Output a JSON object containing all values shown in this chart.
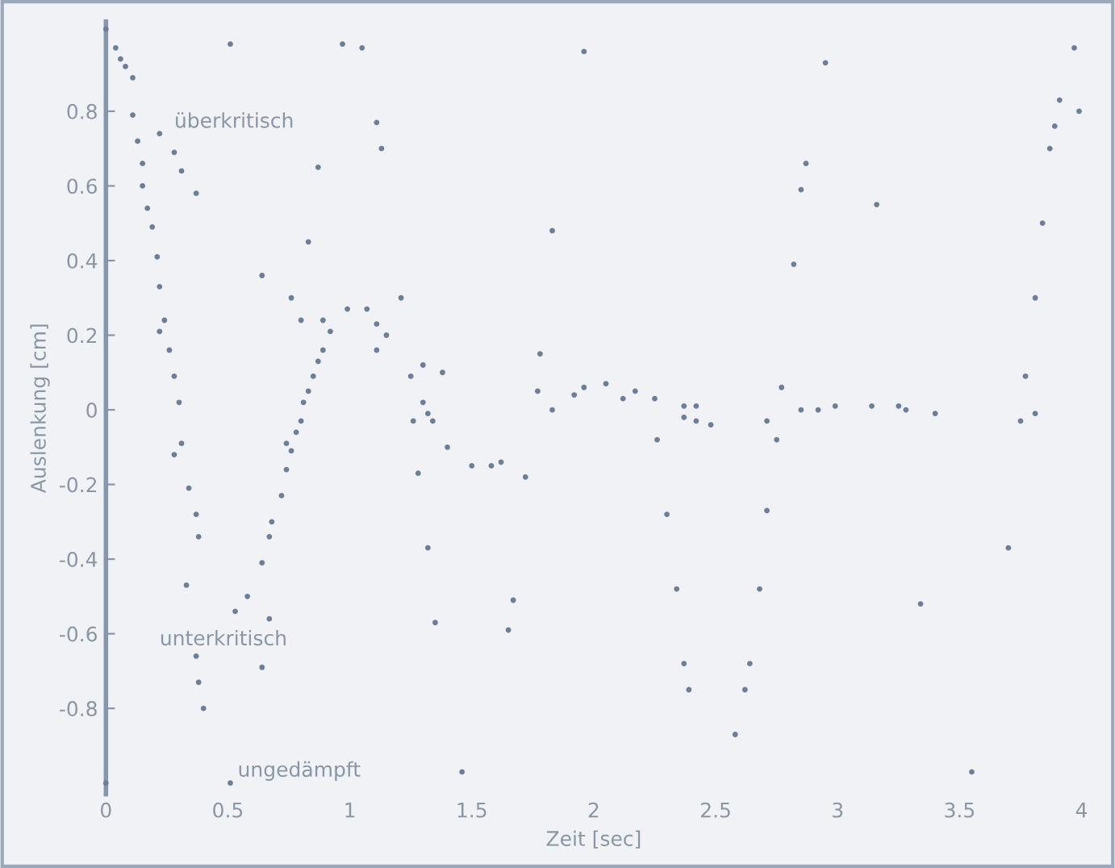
{
  "chart_data": {
    "type": "scatter",
    "xlabel": "Zeit [sec]",
    "ylabel": "Auslenkung [cm]",
    "x": [
      0,
      0.51,
      0.97,
      1.05,
      0.04,
      0.06,
      0.08,
      0.11,
      0.11,
      0.22,
      0.13,
      0.28,
      0.15,
      0.31,
      1.11,
      1.13,
      0.87,
      0.15,
      0.37,
      0.17,
      0.19,
      1.83,
      0.83,
      0.21,
      0.64,
      0.22,
      0.76,
      1.21,
      0.99,
      1.07,
      0.8,
      0.89,
      0.24,
      1.11,
      0.92,
      0.22,
      1.15,
      0.26,
      0.89,
      1.11,
      1.78,
      0.87,
      1.3,
      1.38,
      1.25,
      0.28,
      0.85,
      1.77,
      0.83,
      0.81,
      1.3,
      0.3,
      1.83,
      1.32,
      1.26,
      1.34,
      0.8,
      0.78,
      1.96,
      2.95,
      3.97,
      3.91,
      3.89,
      3.99,
      3.87,
      2.87,
      2.85,
      3.16,
      3.84,
      2.82,
      3.81,
      3.77,
      2.77,
      2.05,
      1.96,
      1.92,
      2.17,
      2.12,
      2.25,
      2.37,
      2.42,
      2.85,
      2.92,
      2.99,
      3.14,
      3.25,
      3.28,
      3.4,
      3.81,
      2.37,
      2.42,
      2.48,
      2.71,
      3.75,
      0.31,
      0.28,
      0.74,
      0.76,
      0.74,
      1.4,
      1.5,
      1.58,
      1.62,
      1.72,
      1.28,
      0.34,
      0.72,
      0.37,
      0.68,
      0.38,
      0.67,
      0.64,
      1.32,
      0.33,
      0.58,
      0.53,
      0.67,
      1.35,
      1.67,
      1.65,
      0.37,
      0.64,
      0.38,
      0.4,
      1.46,
      0,
      0.51,
      2.26,
      2.75,
      2.3,
      2.71,
      2.34,
      2.68,
      2.37,
      2.64,
      2.39,
      2.62,
      2.58,
      3.34,
      3.7,
      3.55
    ],
    "values": [
      1.02,
      0.98,
      0.98,
      0.97,
      0.97,
      0.94,
      0.92,
      0.89,
      0.79,
      0.74,
      0.72,
      0.69,
      0.66,
      0.64,
      0.77,
      0.7,
      0.65,
      0.6,
      0.58,
      0.54,
      0.49,
      0.48,
      0.45,
      0.41,
      0.36,
      0.33,
      0.3,
      0.3,
      0.27,
      0.27,
      0.24,
      0.24,
      0.24,
      0.23,
      0.21,
      0.21,
      0.2,
      0.16,
      0.16,
      0.16,
      0.15,
      0.13,
      0.12,
      0.1,
      0.09,
      0.09,
      0.09,
      0.05,
      0.05,
      0.02,
      0.02,
      0.02,
      0.0,
      -0.01,
      -0.03,
      -0.03,
      -0.03,
      -0.06,
      0.96,
      0.93,
      0.97,
      0.83,
      0.76,
      0.8,
      0.7,
      0.66,
      0.59,
      0.55,
      0.5,
      0.39,
      0.3,
      0.09,
      0.06,
      0.07,
      0.06,
      0.04,
      0.05,
      0.03,
      0.03,
      0.01,
      0.01,
      0.0,
      0.0,
      0.01,
      0.01,
      0.01,
      0.0,
      -0.01,
      -0.01,
      -0.02,
      -0.03,
      -0.04,
      -0.03,
      -0.03,
      -0.09,
      -0.12,
      -0.09,
      -0.11,
      -0.16,
      -0.1,
      -0.15,
      -0.15,
      -0.14,
      -0.18,
      -0.17,
      -0.21,
      -0.23,
      -0.28,
      -0.3,
      -0.34,
      -0.34,
      -0.41,
      -0.37,
      -0.47,
      -0.5,
      -0.54,
      -0.56,
      -0.57,
      -0.51,
      -0.59,
      -0.66,
      -0.69,
      -0.73,
      -0.8,
      -0.97,
      -1.0,
      -1.0,
      -0.08,
      -0.08,
      -0.28,
      -0.27,
      -0.48,
      -0.48,
      -0.68,
      -0.68,
      -0.75,
      -0.75,
      -0.87,
      -0.52,
      -0.37,
      -0.97
    ],
    "color": "#6b7f99",
    "marker": "circle",
    "xlim": [
      0,
      4
    ],
    "ylim": [
      -1.03,
      1.04
    ],
    "xticks": [
      0,
      0.5,
      1,
      1.5,
      2,
      2.5,
      3,
      3.5,
      4
    ],
    "yticks": [
      -0.8,
      -0.6,
      -0.4,
      -0.2,
      0,
      0.2,
      0.4,
      0.6,
      0.8
    ],
    "grid": false,
    "legend": false,
    "annotations": [
      "überkritisch",
      "unterkritisch",
      "ungedämpft"
    ]
  }
}
